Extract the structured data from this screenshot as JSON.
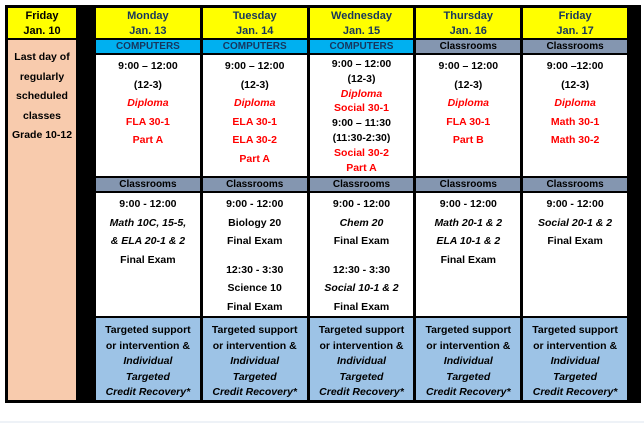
{
  "theme": {
    "table_bg": "#000000",
    "header_bg": "#ffff00",
    "header_text": "#17365d",
    "computers_bg": "#00b0f0",
    "classrooms_bg": "#8496b0",
    "support_bg": "#9dc3e6",
    "note_bg": "#f8cbad",
    "red": "#ff0000"
  },
  "left_column": {
    "day": "Friday",
    "date": "Jan. 10",
    "note_lines": [
      "Last day of",
      "regularly",
      "scheduled",
      "classes",
      "Grade 10-12"
    ]
  },
  "support_lines": [
    {
      "text": "Targeted support",
      "style": "black"
    },
    {
      "text": "or intervention &",
      "style": "black"
    },
    {
      "text": "Individual",
      "style": "italic"
    },
    {
      "text": "Targeted",
      "style": "italic"
    },
    {
      "text": "Credit Recovery*",
      "style": "italic"
    }
  ],
  "days": [
    {
      "day": "Monday",
      "date": "Jan. 13",
      "location": "COMPUTERS",
      "morning_lines": [
        {
          "text": "9:00 – 12:00",
          "style": "black"
        },
        {
          "text": "(12-3)",
          "style": "black"
        },
        {
          "text": "Diploma",
          "style": "red-italic"
        },
        {
          "text": "FLA 30-1",
          "style": "red"
        },
        {
          "text": "Part A",
          "style": "red"
        }
      ],
      "afternoon_header": "Classrooms",
      "exam_lines": [
        {
          "text": "9:00 - 12:00",
          "style": "black"
        },
        {
          "text": "Math 10C, 15-5,",
          "style": "italic"
        },
        {
          "text": "& ELA 20-1 & 2",
          "style": "italic"
        },
        {
          "text": "Final Exam",
          "style": "black"
        }
      ]
    },
    {
      "day": "Tuesday",
      "date": "Jan. 14",
      "location": "COMPUTERS",
      "morning_lines": [
        {
          "text": "9:00 – 12:00",
          "style": "black"
        },
        {
          "text": "(12-3)",
          "style": "black"
        },
        {
          "text": "Diploma",
          "style": "red-italic"
        },
        {
          "text": "ELA 30-1",
          "style": "red"
        },
        {
          "text": "ELA 30-2",
          "style": "red"
        },
        {
          "text": "Part A",
          "style": "red"
        }
      ],
      "afternoon_header": "Classrooms",
      "exam_lines": [
        {
          "text": "9:00 - 12:00",
          "style": "black"
        },
        {
          "text": "Biology 20",
          "style": "black"
        },
        {
          "text": "Final Exam",
          "style": "black"
        },
        {
          "text": "",
          "style": "blank"
        },
        {
          "text": "12:30 - 3:30",
          "style": "black"
        },
        {
          "text": "Science 10",
          "style": "black"
        },
        {
          "text": "Final Exam",
          "style": "black"
        }
      ]
    },
    {
      "day": "Wednesday",
      "date": "Jan. 15",
      "location": "COMPUTERS",
      "morning_lines": [
        {
          "text": "9:00 – 12:00",
          "style": "black"
        },
        {
          "text": "(12-3)",
          "style": "black"
        },
        {
          "text": "Diploma",
          "style": "red-italic"
        },
        {
          "text": "Social 30-1",
          "style": "red"
        },
        {
          "text": "9:00 – 11:30",
          "style": "black"
        },
        {
          "text": "(11:30-2:30)",
          "style": "black"
        },
        {
          "text": "Social 30-2",
          "style": "red"
        },
        {
          "text": "Part A",
          "style": "red"
        }
      ],
      "afternoon_header": "Classrooms",
      "exam_lines": [
        {
          "text": "9:00 - 12:00",
          "style": "black"
        },
        {
          "text": "Chem 20",
          "style": "italic"
        },
        {
          "text": "Final Exam",
          "style": "black"
        },
        {
          "text": "",
          "style": "blank"
        },
        {
          "text": "12:30 - 3:30",
          "style": "black"
        },
        {
          "text": "Social 10-1 & 2",
          "style": "italic"
        },
        {
          "text": "Final Exam",
          "style": "black"
        }
      ]
    },
    {
      "day": "Thursday",
      "date": "Jan. 16",
      "location": "Classrooms",
      "morning_lines": [
        {
          "text": "9:00 – 12:00",
          "style": "black"
        },
        {
          "text": "(12-3)",
          "style": "black"
        },
        {
          "text": "Diploma",
          "style": "red-italic"
        },
        {
          "text": "FLA 30-1",
          "style": "red"
        },
        {
          "text": "Part B",
          "style": "red"
        }
      ],
      "afternoon_header": "Classrooms",
      "exam_lines": [
        {
          "text": "9:00 - 12:00",
          "style": "black"
        },
        {
          "text": "Math 20-1 & 2",
          "style": "italic"
        },
        {
          "text": "ELA 10-1 & 2",
          "style": "italic"
        },
        {
          "text": "Final Exam",
          "style": "black"
        }
      ]
    },
    {
      "day": "Friday",
      "date": "Jan. 17",
      "location": "Classrooms",
      "morning_lines": [
        {
          "text": "9:00 –12:00",
          "style": "black"
        },
        {
          "text": "(12-3)",
          "style": "black"
        },
        {
          "text": "Diploma",
          "style": "red-italic"
        },
        {
          "text": "Math 30-1",
          "style": "red"
        },
        {
          "text": "Math 30-2",
          "style": "red"
        }
      ],
      "afternoon_header": "Classrooms",
      "exam_lines": [
        {
          "text": "9:00 - 12:00",
          "style": "black"
        },
        {
          "text": "Social 20-1 & 2",
          "style": "italic"
        },
        {
          "text": "Final Exam",
          "style": "black"
        }
      ]
    }
  ]
}
